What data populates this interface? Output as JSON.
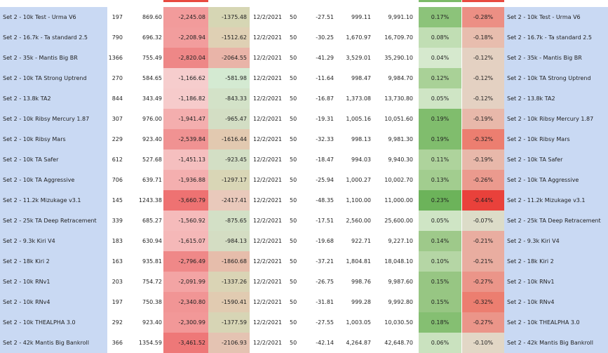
{
  "rows": [
    {
      "name": "Set 2 - 10k Test - Urma V6",
      "count": "197",
      "value": "869.60",
      "dd1": "-2,245.08",
      "dd2": "-1375.48",
      "date": "12/2/2021",
      "fifty": "50",
      "daily": "-27.51",
      "base": "999.11",
      "total": "9,991.10",
      "pos": "0.17%",
      "neg": "-0.28%",
      "c1": "#f29b9b",
      "c2": "#d6d6b4",
      "cp": "#8cc37a",
      "cn": "#ec8f84"
    },
    {
      "name": "Set 2 - 16.7k - Ta standard 2.5",
      "count": "790",
      "value": "696.32",
      "dd1": "-2,208.94",
      "dd2": "-1512.62",
      "date": "12/2/2021",
      "fifty": "50",
      "daily": "-30.25",
      "base": "1,670.97",
      "total": "16,709.70",
      "pos": "0.08%",
      "neg": "-0.18%",
      "c1": "#f29d9d",
      "c2": "#dfd0b4",
      "cp": "#c1deb4",
      "cn": "#e8bdae"
    },
    {
      "name": "Set 2 - 35k - Mantis Big BR",
      "count": "1366",
      "value": "755.49",
      "dd1": "-2,820.04",
      "dd2": "-2064.55",
      "date": "12/2/2021",
      "fifty": "50",
      "daily": "-41.29",
      "base": "3,529.01",
      "total": "35,290.10",
      "pos": "0.04%",
      "neg": "-0.12%",
      "c1": "#ee8787",
      "c2": "#e9b4a8",
      "cp": "#d6e9ce",
      "cn": "#e4d1c2"
    },
    {
      "name": "Set 2 - 10k TA Strong Uptrend",
      "count": "270",
      "value": "584.65",
      "dd1": "-1,166.62",
      "dd2": "-581.98",
      "date": "12/2/2021",
      "fifty": "50",
      "daily": "-11.64",
      "base": "998.47",
      "total": "9,984.70",
      "pos": "0.12%",
      "neg": "-0.12%",
      "c1": "#f6cdcd",
      "c2": "#d4ead2",
      "cp": "#a9d197",
      "cn": "#e4d1c2"
    },
    {
      "name": "Set 2 - 13.8k TA2",
      "count": "844",
      "value": "343.49",
      "dd1": "-1,186.82",
      "dd2": "-843.33",
      "date": "12/2/2021",
      "fifty": "50",
      "daily": "-16.87",
      "base": "1,373.08",
      "total": "13,730.80",
      "pos": "0.05%",
      "neg": "-0.12%",
      "c1": "#f6cbcb",
      "c2": "#d3e2c8",
      "cp": "#cfe5c5",
      "cn": "#e4d1c2"
    },
    {
      "name": "Set 2 - 10k Ribsy Mercury 1.87",
      "count": "307",
      "value": "976.00",
      "dd1": "-1,941.47",
      "dd2": "-965.47",
      "date": "12/2/2021",
      "fifty": "50",
      "daily": "-19.31",
      "base": "1,005.16",
      "total": "10,051.60",
      "pos": "0.19%",
      "neg": "-0.19%",
      "c1": "#f4aeae",
      "c2": "#d3dec4",
      "cp": "#80bd6d",
      "cn": "#e8b8aa"
    },
    {
      "name": "Set 2 - 10k Ribsy Mars",
      "count": "229",
      "value": "923.40",
      "dd1": "-2,539.84",
      "dd2": "-1616.44",
      "date": "12/2/2021",
      "fifty": "50",
      "daily": "-32.33",
      "base": "998.13",
      "total": "9,981.30",
      "pos": "0.19%",
      "neg": "-0.32%",
      "c1": "#f09292",
      "c2": "#e2c9b0",
      "cp": "#80bd6d",
      "cn": "#ec7e70"
    },
    {
      "name": "Set 2 - 10k TA Safer",
      "count": "612",
      "value": "527.68",
      "dd1": "-1,451.13",
      "dd2": "-923.45",
      "date": "12/2/2021",
      "fifty": "50",
      "daily": "-18.47",
      "base": "994.03",
      "total": "9,940.30",
      "pos": "0.11%",
      "neg": "-0.19%",
      "c1": "#f5bfbf",
      "c2": "#d3dfc5",
      "cp": "#aed39c",
      "cn": "#e8b8aa"
    },
    {
      "name": "Set 2 - 10k TA Aggressive",
      "count": "706",
      "value": "639.71",
      "dd1": "-1,936.88",
      "dd2": "-1297.17",
      "date": "12/2/2021",
      "fifty": "50",
      "daily": "-25.94",
      "base": "1,000.27",
      "total": "10,002.70",
      "pos": "0.13%",
      "neg": "-0.26%",
      "c1": "#f4afaf",
      "c2": "#d9d6b6",
      "cp": "#a2cd8f",
      "cn": "#eb9a8e"
    },
    {
      "name": "Set 2 - 11.2k Mizukage v3.1",
      "count": "145",
      "value": "1243.38",
      "dd1": "-3,660.79",
      "dd2": "-2417.41",
      "date": "12/2/2021",
      "fifty": "50",
      "daily": "-48.35",
      "base": "1,100.00",
      "total": "11,000.00",
      "pos": "0.23%",
      "neg": "-0.44%",
      "c1": "#ee7272",
      "c2": "#e9c9bb",
      "cp": "#6cb35a",
      "cn": "#e9413b"
    },
    {
      "name": "Set 2 - 25k TA Deep Retracement",
      "count": "339",
      "value": "685.27",
      "dd1": "-1,560.92",
      "dd2": "-875.65",
      "date": "12/2/2021",
      "fifty": "50",
      "daily": "-17.51",
      "base": "2,560.00",
      "total": "25,600.00",
      "pos": "0.05%",
      "neg": "-0.07%",
      "c1": "#f5bbbb",
      "c2": "#d3e0c6",
      "cp": "#cfe5c5",
      "cn": "#dcdcc8"
    },
    {
      "name": "Set 2 - 9.3k Kiri V4",
      "count": "183",
      "value": "630.94",
      "dd1": "-1,615.07",
      "dd2": "-984.13",
      "date": "12/2/2021",
      "fifty": "50",
      "daily": "-19.68",
      "base": "922.71",
      "total": "9,227.10",
      "pos": "0.14%",
      "neg": "-0.21%",
      "c1": "#f5b8b8",
      "c2": "#d4ddc3",
      "cp": "#9ec98a",
      "cn": "#e9ada0"
    },
    {
      "name": "Set 2 - 18k Kiri 2",
      "count": "163",
      "value": "935.81",
      "dd1": "-2,796.49",
      "dd2": "-1860.68",
      "date": "12/2/2021",
      "fifty": "50",
      "daily": "-37.21",
      "base": "1,804.81",
      "total": "18,048.10",
      "pos": "0.10%",
      "neg": "-0.21%",
      "c1": "#ef8888",
      "c2": "#e6bdab",
      "cp": "#b5d6a5",
      "cn": "#e9ada0"
    },
    {
      "name": "Set 2 - 10k RNv1",
      "count": "203",
      "value": "754.72",
      "dd1": "-2,091.99",
      "dd2": "-1337.26",
      "date": "12/2/2021",
      "fifty": "50",
      "daily": "-26.75",
      "base": "998.76",
      "total": "9,987.60",
      "pos": "0.15%",
      "neg": "-0.27%",
      "c1": "#f3a4a4",
      "c2": "#dad4b5",
      "cp": "#97c683",
      "cn": "#eb9589"
    },
    {
      "name": "Set 2 - 10k RNv4",
      "count": "197",
      "value": "750.38",
      "dd1": "-2,340.80",
      "dd2": "-1590.41",
      "date": "12/2/2021",
      "fifty": "50",
      "daily": "-31.81",
      "base": "999.28",
      "total": "9,992.80",
      "pos": "0.15%",
      "neg": "-0.32%",
      "c1": "#f19595",
      "c2": "#e1cbb1",
      "cp": "#97c683",
      "cn": "#ec7e70"
    },
    {
      "name": "Set 2 - 10k THEALPHA 3.0",
      "count": "292",
      "value": "923.40",
      "dd1": "-2,300.99",
      "dd2": "-1377.59",
      "date": "12/2/2021",
      "fifty": "50",
      "daily": "-27.55",
      "base": "1,003.05",
      "total": "10,030.50",
      "pos": "0.18%",
      "neg": "-0.27%",
      "c1": "#f29898",
      "c2": "#d7d5b5",
      "cp": "#85bf72",
      "cn": "#eb9589"
    },
    {
      "name": "Set 2 - 42k Mantis Big Bankroll",
      "count": "366",
      "value": "1354.59",
      "dd1": "-3,461.52",
      "dd2": "-2106.93",
      "date": "12/2/2021",
      "fifty": "50",
      "daily": "-42.14",
      "base": "4,264.87",
      "total": "42,648.70",
      "pos": "0.06%",
      "neg": "-0.10%",
      "c1": "#ee7878",
      "c2": "#e4c3b2",
      "cp": "#cae2bf",
      "cn": "#e2d7c6"
    }
  ],
  "top_strip": {
    "green": "#7cbb68",
    "red": "#e84a40"
  }
}
